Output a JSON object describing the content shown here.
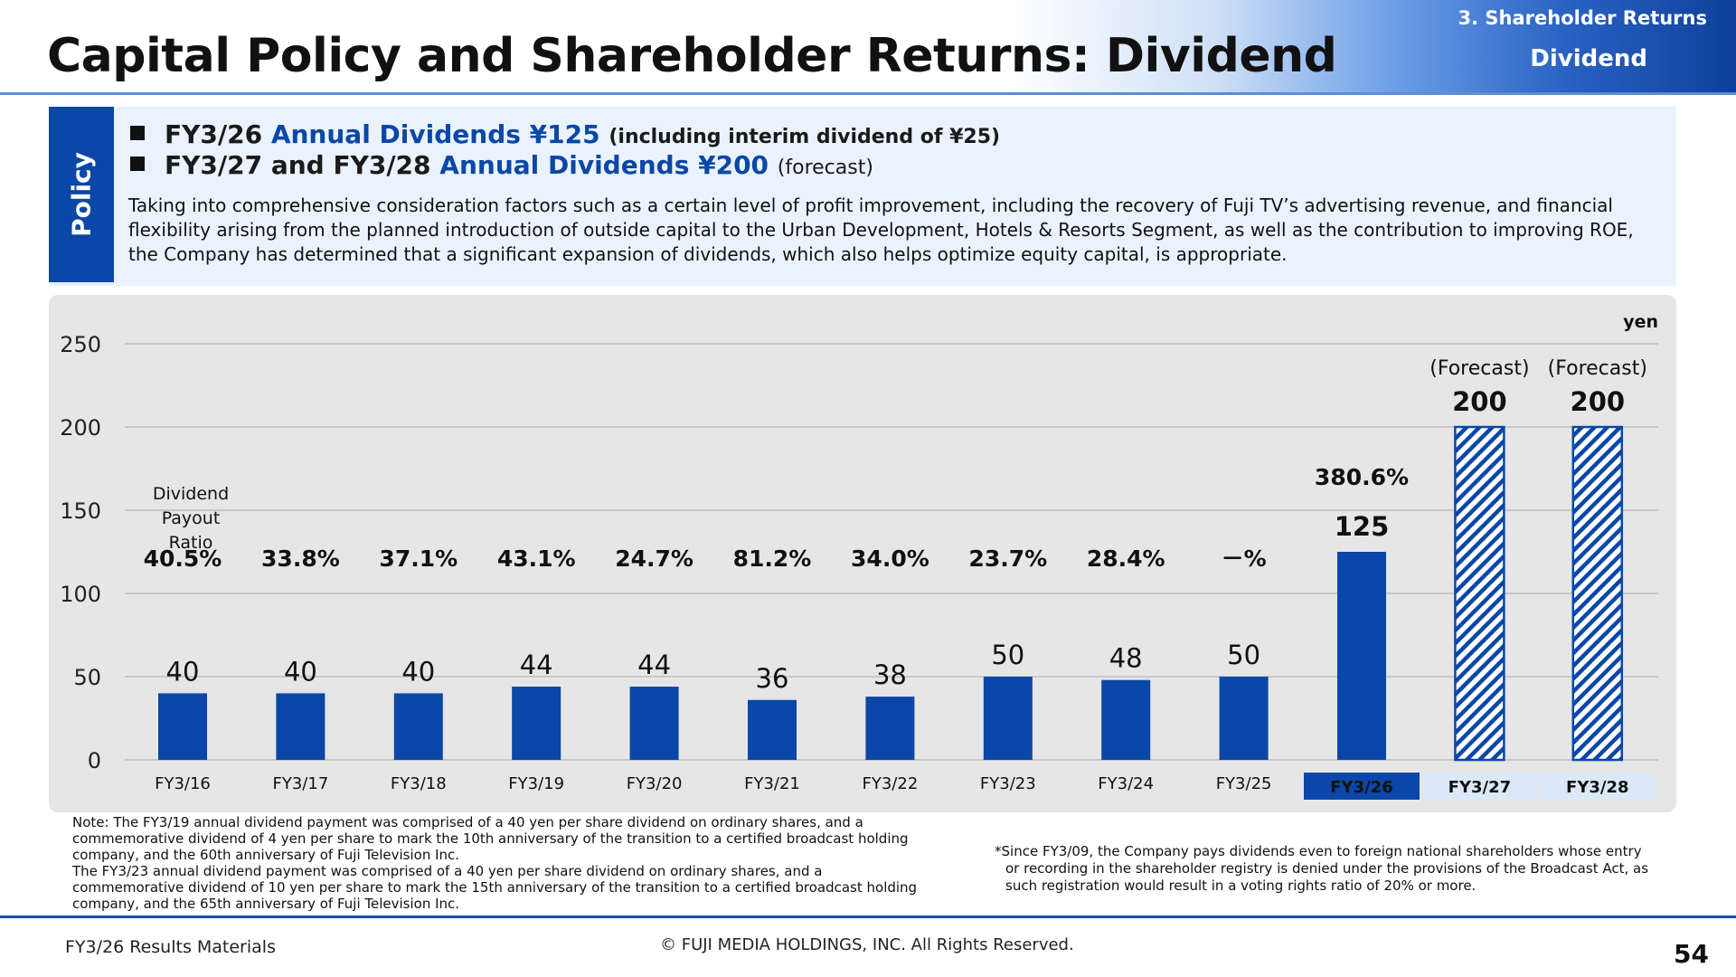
{
  "header": {
    "title": "Capital Policy and Shareholder Returns: Dividend",
    "section": "3. Shareholder Returns",
    "subsection": "Dividend"
  },
  "policy": {
    "tab_label": "Policy",
    "bullet1": {
      "fy": "FY3/26",
      "headline": "Annual Dividends ¥125",
      "note": "(including interim dividend of ¥25)"
    },
    "bullet2": {
      "fy": "FY3/27 and FY3/28",
      "headline": "Annual Dividends ¥200",
      "note": "(forecast)"
    },
    "body": "Taking into comprehensive consideration factors such as a certain level of profit improvement, including the recovery of Fuji TV’s advertising revenue, and financial flexibility arising from the planned introduction of outside capital to the Urban Development, Hotels & Resorts Segment, as well as the contribution to improving ROE, the Company has determined that a significant expansion of dividends, which also helps optimize equity capital, is appropriate."
  },
  "chart_data": {
    "type": "bar",
    "unit": "yen",
    "categories": [
      "FY3/16",
      "FY3/17",
      "FY3/18",
      "FY3/19",
      "FY3/20",
      "FY3/21",
      "FY3/22",
      "FY3/23",
      "FY3/24",
      "FY3/25",
      "FY3/26",
      "FY3/27",
      "FY3/28"
    ],
    "values": [
      40,
      40,
      40,
      44,
      44,
      36,
      38,
      50,
      48,
      50,
      125,
      200,
      200
    ],
    "value_labels": [
      "40",
      "40",
      "40",
      "44",
      "44",
      "36",
      "38",
      "50",
      "48",
      "50",
      "125",
      "200",
      "200"
    ],
    "payout_ratio_title": "Dividend Payout Ratio",
    "payout_ratios": [
      "40.5%",
      "33.8%",
      "37.1%",
      "43.1%",
      "24.7%",
      "81.2%",
      "34.0%",
      "23.7%",
      "28.4%",
      "－%",
      "380.6%",
      "",
      ""
    ],
    "forecast_flags": [
      false,
      false,
      false,
      false,
      false,
      false,
      false,
      false,
      false,
      false,
      false,
      true,
      true
    ],
    "forecast_label": "(Forecast)",
    "highlight_index": 10,
    "yticks": [
      0,
      50,
      100,
      150,
      200,
      250
    ],
    "ylim": [
      0,
      250
    ],
    "grid": true,
    "colors": {
      "bar": "#0a47a8",
      "highlight_text": "#0a47a8",
      "forecast_tag_bg": "#dce8f8",
      "current_tag_bg": "#0a47a8"
    }
  },
  "notes": {
    "left": [
      "Note: The FY3/19 annual dividend payment was comprised of a 40 yen per share dividend on ordinary shares, and a",
      "commemorative dividend of 4 yen per share to mark the 10th anniversary of the transition to a certified broadcast holding",
      "company, and the 60th anniversary of Fuji Television Inc.",
      "The FY3/23 annual dividend payment was comprised of a 40 yen per share dividend on ordinary shares, and a",
      "commemorative dividend of 10 yen per share to mark the 15th anniversary of the transition to a certified broadcast holding",
      "company, and the 65th anniversary of Fuji Television Inc."
    ],
    "right": [
      "*Since FY3/09, the Company pays dividends even to foreign national shareholders whose entry",
      "or recording in the shareholder registry is denied under the provisions of the Broadcast Act, as",
      "such registration would result in a voting rights ratio of 20% or more."
    ]
  },
  "footer": {
    "left": "FY3/26 Results Materials",
    "center": "© FUJI MEDIA HOLDINGS, INC. All Rights Reserved.",
    "page": "54"
  }
}
